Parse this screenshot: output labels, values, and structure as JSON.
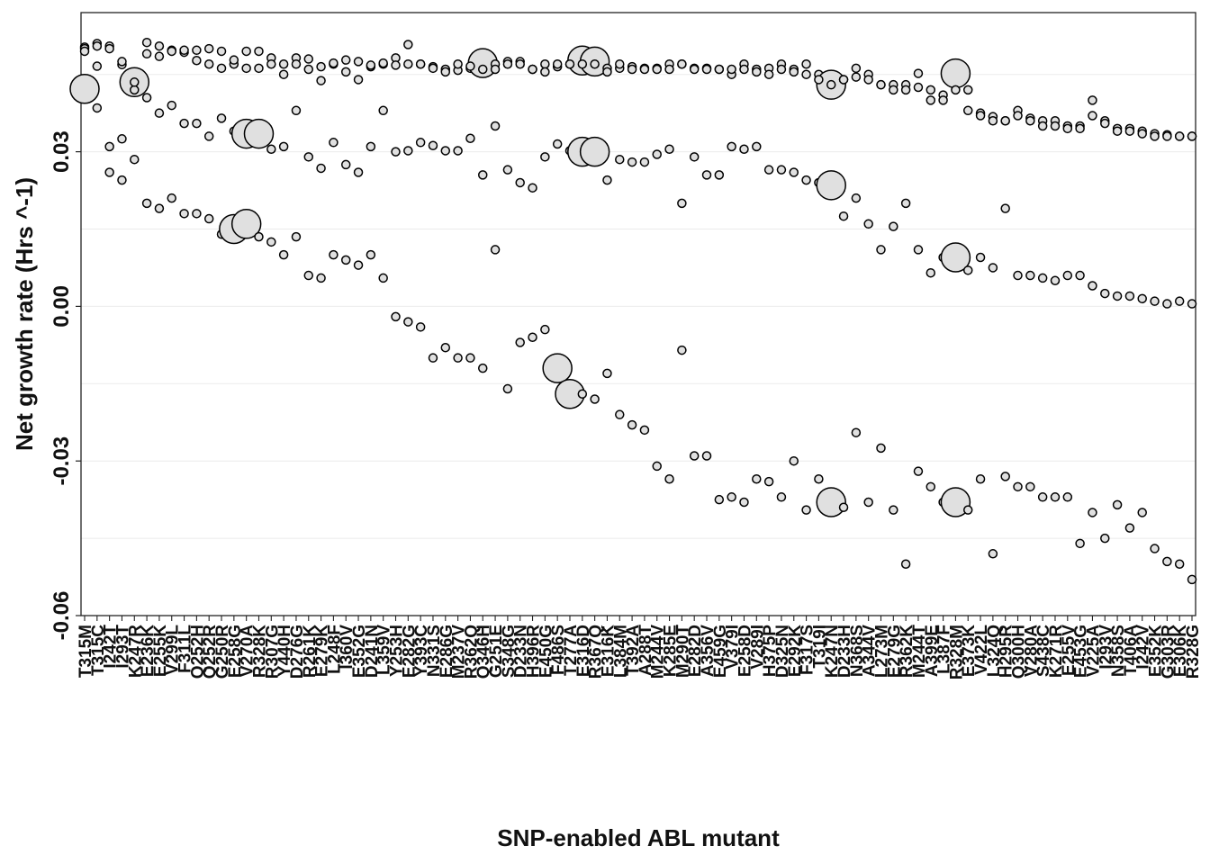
{
  "chart_data": {
    "type": "scatter",
    "title": "",
    "xlabel": "SNP-enabled ABL mutant",
    "ylabel": "Net growth rate (Hrs ^-1)",
    "ylim": [
      -0.06,
      0.057
    ],
    "yticks": [
      "0.03",
      "0.00",
      "-0.03",
      "-0.06"
    ],
    "ytick_values": [
      0.03,
      0.0,
      -0.03,
      -0.06
    ],
    "grid": "horizontal, light grey",
    "legend": "none",
    "point_fill": "#e0e0e0",
    "point_stroke": "#000000",
    "categories": [
      "T315M",
      "T315C",
      "I242T",
      "I293T",
      "K247R",
      "E236K",
      "E255K",
      "V299L",
      "F311L",
      "Q252H",
      "Q252R",
      "G250R",
      "E258G",
      "V270A",
      "R328K",
      "R307G",
      "Y440H",
      "D276G",
      "R261K",
      "E279K",
      "L248F",
      "I360V",
      "E352G",
      "D241N",
      "L359V",
      "Y253H",
      "E282G",
      "Y393C",
      "N331S",
      "E286G",
      "M237V",
      "R362Q",
      "Q346H",
      "G251E",
      "S348G",
      "D233N",
      "H396R",
      "E450G",
      "F486S",
      "T277A",
      "E316D",
      "R367Q",
      "E316K",
      "L384M",
      "T392A",
      "A288T",
      "M244V",
      "K285E",
      "M290T",
      "E282D",
      "A356V",
      "E459G",
      "V379I",
      "E258D",
      "V289I",
      "H375P",
      "D325N",
      "E292K",
      "F317S",
      "T319I",
      "K247N",
      "D233H",
      "N368S",
      "A344V",
      "L273M",
      "E279G",
      "R362K",
      "M244T",
      "A399E",
      "L387F",
      "R328M",
      "E373K",
      "V422L",
      "L324Q",
      "H295R",
      "Q300H",
      "V280A",
      "S438C",
      "K271R",
      "E255V",
      "E453G",
      "V225A",
      "I293V",
      "N358S",
      "T406A",
      "I242V",
      "E352K",
      "G303R",
      "E306K",
      "R328G"
    ],
    "series": [
      {
        "values": [
          0.0503,
          0.051,
          0.0505,
          0.0469,
          0.0435,
          0.0512,
          0.0505,
          0.0497,
          0.0493,
          0.0497,
          0.05,
          0.0495,
          0.047,
          0.0495,
          0.0495,
          0.0482,
          0.047,
          0.0482,
          0.048,
          0.0438,
          0.047,
          0.0478,
          0.0475,
          0.0465,
          0.047,
          0.0482,
          0.0508,
          0.047,
          0.0465,
          0.046,
          0.0458,
          0.0462,
          0.0472,
          0.047,
          0.0475,
          0.0475,
          0.046,
          0.047,
          0.0465,
          0.047,
          0.0477,
          0.0475,
          0.0462,
          0.0462,
          0.0465,
          0.0462,
          0.0462,
          0.047,
          0.047,
          0.0462,
          0.0462,
          0.046,
          0.045,
          0.047,
          0.046,
          0.0462,
          0.047,
          0.046,
          0.047,
          0.045,
          0.043,
          0.044,
          0.0462,
          0.045,
          0.043,
          0.043,
          0.043,
          0.0452,
          0.042,
          0.041,
          0.0452,
          0.042,
          0.0375,
          0.0368,
          0.036,
          0.038,
          0.0365,
          0.036,
          0.036,
          0.035,
          0.035,
          0.04,
          0.036,
          0.0345,
          0.0345,
          0.034,
          0.0335,
          0.0333,
          0.033,
          0.033
        ],
        "sizes": [
          1,
          1,
          1,
          1,
          4,
          1,
          1,
          1,
          1,
          1,
          1,
          1,
          1,
          1,
          1,
          1,
          1,
          1,
          1,
          1,
          1,
          1,
          1,
          1,
          1,
          1,
          1,
          1,
          1,
          1,
          1,
          1,
          4,
          1,
          1,
          1,
          1,
          1,
          1,
          1,
          4,
          4,
          1,
          1,
          1,
          1,
          1,
          1,
          1,
          1,
          1,
          1,
          1,
          1,
          1,
          1,
          1,
          1,
          1,
          1,
          4,
          1,
          1,
          1,
          1,
          1,
          1,
          1,
          1,
          1,
          4,
          1,
          1,
          1,
          1,
          1,
          1,
          1,
          1,
          1,
          1,
          1,
          1,
          1,
          1,
          1,
          1,
          1,
          1,
          1
        ]
      },
      {
        "values": [
          0.0422,
          0.0385,
          0.031,
          0.0325,
          0.042,
          0.0405,
          0.0375,
          0.039,
          0.0355,
          0.0355,
          0.033,
          0.0365,
          0.034,
          0.0335,
          0.0335,
          0.0305,
          0.031,
          0.038,
          0.029,
          0.0268,
          0.0318,
          0.0275,
          0.026,
          0.031,
          0.038,
          0.03,
          0.0302,
          0.0318,
          0.0312,
          0.0302,
          0.0302,
          0.0326,
          0.0255,
          0.035,
          0.0265,
          0.024,
          0.023,
          0.029,
          0.0315,
          0.0302,
          0.03,
          0.03,
          0.0245,
          0.0285,
          0.028,
          0.028,
          0.0295,
          0.0305,
          0.02,
          0.029,
          0.0255,
          0.0255,
          0.031,
          0.0305,
          0.031,
          0.0265,
          0.0265,
          0.026,
          0.0245,
          0.024,
          0.0235,
          0.0175,
          0.021,
          0.016,
          0.011,
          0.0155,
          0.02,
          0.011,
          0.0065,
          0.0095,
          0.0095,
          0.007,
          0.0095,
          0.0075,
          0.019,
          0.006,
          0.006,
          0.0055,
          0.005,
          0.006,
          0.006,
          0.004,
          0.0025,
          0.002,
          0.002,
          0.0015,
          0.001,
          0.0005,
          0.001,
          0.0005
        ],
        "sizes": [
          4,
          1,
          1,
          1,
          1,
          1,
          1,
          1,
          1,
          1,
          1,
          1,
          1,
          4,
          4,
          1,
          1,
          1,
          1,
          1,
          1,
          1,
          1,
          1,
          1,
          1,
          1,
          1,
          1,
          1,
          1,
          1,
          1,
          1,
          1,
          1,
          1,
          1,
          1,
          1,
          4,
          4,
          1,
          1,
          1,
          1,
          1,
          1,
          1,
          1,
          1,
          1,
          1,
          1,
          1,
          1,
          1,
          1,
          1,
          1,
          4,
          1,
          1,
          1,
          1,
          1,
          1,
          1,
          1,
          1,
          4,
          1,
          1,
          1,
          1,
          1,
          1,
          1,
          1,
          1,
          1,
          1,
          1,
          1,
          1,
          1,
          1,
          1,
          1,
          1
        ]
      },
      {
        "values": [
          0.05,
          0.0466,
          0.026,
          0.0245,
          0.0285,
          0.02,
          0.019,
          0.021,
          0.018,
          0.018,
          0.017,
          0.014,
          0.015,
          0.016,
          0.0135,
          0.0125,
          0.01,
          0.0135,
          0.006,
          0.0055,
          0.01,
          0.009,
          0.008,
          0.01,
          0.0055,
          -0.002,
          -0.003,
          -0.004,
          -0.01,
          -0.008,
          -0.01,
          -0.01,
          -0.012,
          0.011,
          -0.016,
          -0.007,
          -0.006,
          -0.0045,
          -0.012,
          -0.017,
          -0.017,
          -0.018,
          -0.013,
          -0.021,
          -0.023,
          -0.024,
          -0.031,
          -0.0335,
          -0.0085,
          -0.029,
          -0.029,
          -0.0375,
          -0.037,
          -0.038,
          -0.0335,
          -0.034,
          -0.037,
          -0.03,
          -0.0395,
          -0.0335,
          -0.038,
          -0.039,
          -0.0245,
          -0.038,
          -0.0275,
          -0.0395,
          -0.05,
          -0.032,
          -0.035,
          -0.038,
          -0.038,
          -0.0395,
          -0.0335,
          -0.048,
          -0.033,
          -0.035,
          -0.035,
          -0.037,
          -0.037,
          -0.037,
          -0.046,
          -0.04,
          -0.045,
          -0.0385,
          -0.043,
          -0.04,
          -0.047,
          -0.0495,
          -0.05,
          -0.053
        ],
        "sizes": [
          1,
          1,
          1,
          1,
          1,
          1,
          1,
          1,
          1,
          1,
          1,
          1,
          4,
          4,
          1,
          1,
          1,
          1,
          1,
          1,
          1,
          1,
          1,
          1,
          1,
          1,
          1,
          1,
          1,
          1,
          1,
          1,
          1,
          1,
          1,
          1,
          1,
          1,
          4,
          4,
          1,
          1,
          1,
          1,
          1,
          1,
          1,
          1,
          1,
          1,
          1,
          1,
          1,
          1,
          1,
          1,
          1,
          1,
          1,
          1,
          4,
          1,
          1,
          1,
          1,
          1,
          1,
          1,
          1,
          1,
          4,
          1,
          1,
          1,
          1,
          1,
          1,
          1,
          1,
          1,
          1,
          1,
          1,
          1,
          1,
          1,
          1,
          1,
          1,
          1
        ]
      },
      {
        "values": [
          0.0495,
          0.0505,
          0.05,
          0.0475,
          0.0435,
          0.049,
          0.0485,
          0.0495,
          0.0497,
          0.0477,
          0.047,
          0.0462,
          0.0478,
          0.0462,
          0.0462,
          0.047,
          0.045,
          0.047,
          0.046,
          0.0465,
          0.0472,
          0.0455,
          0.044,
          0.0468,
          0.0472,
          0.0468,
          0.047,
          0.047,
          0.0462,
          0.0455,
          0.047,
          0.0466,
          0.046,
          0.046,
          0.047,
          0.047,
          0.046,
          0.0455,
          0.047,
          0.047,
          0.047,
          0.047,
          0.0455,
          0.047,
          0.046,
          0.046,
          0.046,
          0.046,
          0.047,
          0.046,
          0.046,
          0.046,
          0.046,
          0.046,
          0.0455,
          0.045,
          0.046,
          0.0455,
          0.045,
          0.044,
          0.043,
          0.044,
          0.0445,
          0.044,
          0.043,
          0.042,
          0.042,
          0.0425,
          0.04,
          0.04,
          0.042,
          0.038,
          0.037,
          0.036,
          0.036,
          0.037,
          0.036,
          0.035,
          0.035,
          0.0345,
          0.0345,
          0.037,
          0.0355,
          0.034,
          0.034,
          0.0335,
          0.033,
          0.033,
          0.033,
          0.033
        ],
        "sizes": []
      }
    ]
  }
}
